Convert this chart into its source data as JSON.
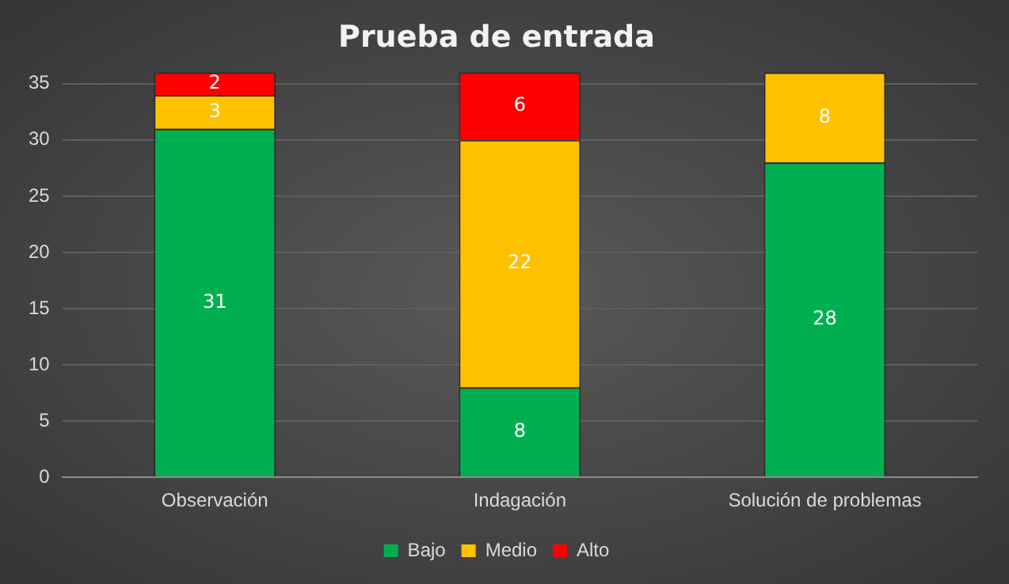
{
  "chart_data": {
    "type": "bar",
    "title": "Prueba de entrada",
    "categories": [
      "Observación",
      "Indagación",
      "Solución de problemas"
    ],
    "series": [
      {
        "name": "Bajo",
        "color": "#00b050",
        "values": [
          31,
          8,
          28
        ]
      },
      {
        "name": "Medio",
        "color": "#ffc000",
        "values": [
          3,
          22,
          8
        ]
      },
      {
        "name": "Alto",
        "color": "#ff0000",
        "values": [
          2,
          6,
          null
        ]
      }
    ],
    "stacked": true,
    "ylim": [
      0,
      36
    ],
    "yticks": [
      0,
      5,
      10,
      15,
      20,
      25,
      30,
      35
    ],
    "grid": "y",
    "legend": "bottom",
    "data_labels": true
  }
}
